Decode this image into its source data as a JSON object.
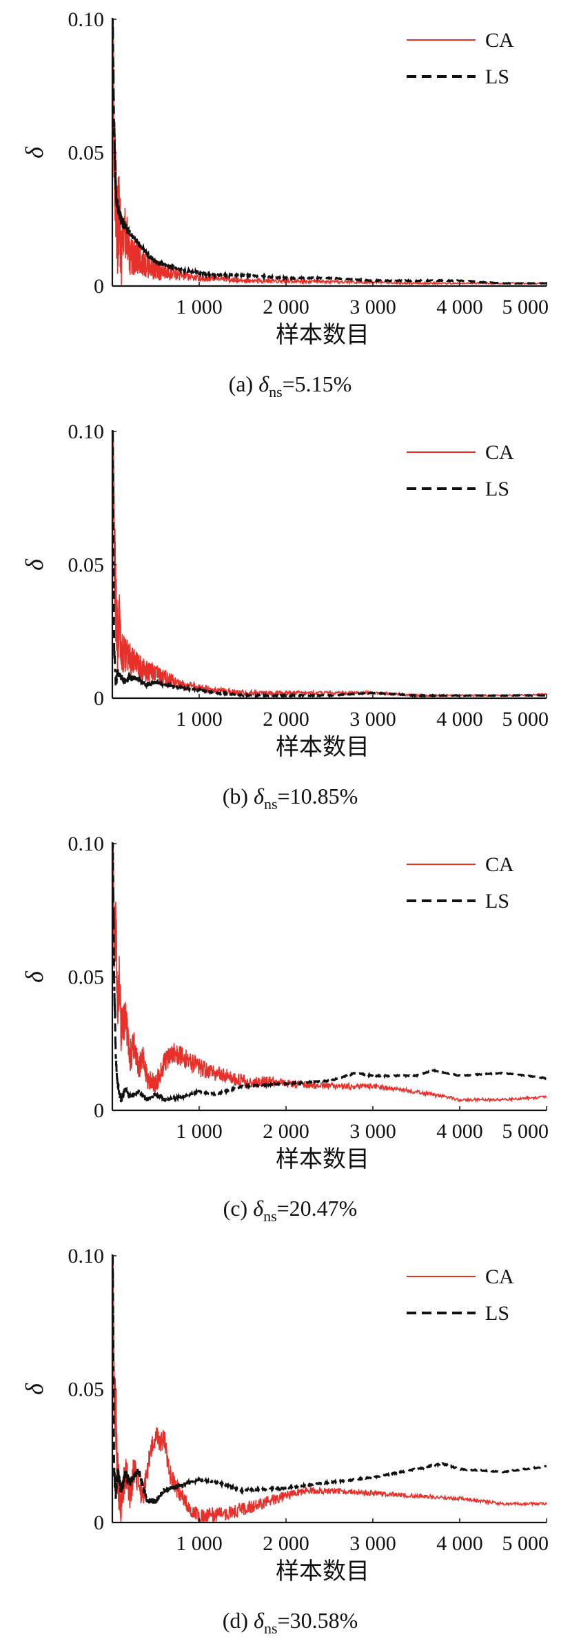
{
  "chart_data": [
    {
      "type": "line",
      "panel_label": "(a)",
      "caption_symbol": "δ",
      "caption_subscript": "ns",
      "caption_value": "=5.15%",
      "xlabel": "样本数目",
      "ylabel": "δ",
      "xlim": [
        0,
        5000
      ],
      "ylim": [
        0,
        0.1
      ],
      "x_ticks": [
        1000,
        2000,
        3000,
        4000,
        5000
      ],
      "x_tick_labels": [
        "1 000",
        "2 000",
        "3 000",
        "4 000",
        "5 000"
      ],
      "y_ticks": [
        0,
        0.05,
        0.1
      ],
      "y_tick_labels": [
        "0",
        "0.05",
        "0.10"
      ],
      "legend_position": "top-right",
      "grid": false,
      "series": [
        {
          "name": "CA",
          "color": "#e8302a",
          "style": "solid",
          "x": [
            5,
            20,
            40,
            60,
            80,
            100,
            150,
            200,
            300,
            400,
            500,
            600,
            800,
            1000,
            1200,
            1500,
            2000,
            2500,
            3000,
            3500,
            4000,
            4500,
            5000
          ],
          "y": [
            0.1,
            0.05,
            0.035,
            0.02,
            0.03,
            0.01,
            0.02,
            0.012,
            0.01,
            0.008,
            0.006,
            0.005,
            0.004,
            0.003,
            0.003,
            0.002,
            0.002,
            0.0015,
            0.0015,
            0.001,
            0.001,
            0.001,
            0.001
          ],
          "noise": [
            0.02,
            0.02,
            0.018,
            0.018,
            0.015,
            0.012,
            0.01,
            0.008,
            0.006,
            0.005,
            0.004,
            0.003,
            0.002,
            0.0015,
            0.0012,
            0.001,
            0.0008,
            0.0006,
            0.0005,
            0.0004,
            0.0003,
            0.0003,
            0.0003
          ]
        },
        {
          "name": "LS",
          "color": "#111111",
          "style": "dashed",
          "x": [
            5,
            20,
            40,
            60,
            100,
            150,
            200,
            300,
            400,
            500,
            600,
            800,
            1000,
            1200,
            1500,
            2000,
            2500,
            3000,
            3500,
            4000,
            4500,
            5000
          ],
          "y": [
            0.1,
            0.06,
            0.035,
            0.03,
            0.025,
            0.022,
            0.02,
            0.016,
            0.012,
            0.009,
            0.008,
            0.006,
            0.005,
            0.004,
            0.004,
            0.003,
            0.003,
            0.002,
            0.002,
            0.002,
            0.001,
            0.001
          ],
          "noise": [
            0.005,
            0.004,
            0.003,
            0.002,
            0.002,
            0.002,
            0.001,
            0.001,
            0.001,
            0.001,
            0.0008,
            0.0006,
            0.0005,
            0.0004,
            0.0003,
            0.0003,
            0.0002,
            0.0002,
            0.0002,
            0.0002,
            0.0001,
            0.0001
          ]
        }
      ]
    },
    {
      "type": "line",
      "panel_label": "(b)",
      "caption_symbol": "δ",
      "caption_subscript": "ns",
      "caption_value": "=10.85%",
      "xlabel": "样本数目",
      "ylabel": "δ",
      "xlim": [
        0,
        5000
      ],
      "ylim": [
        0,
        0.1
      ],
      "x_ticks": [
        1000,
        2000,
        3000,
        4000,
        5000
      ],
      "x_tick_labels": [
        "1 000",
        "2 000",
        "3 000",
        "4 000",
        "5 000"
      ],
      "y_ticks": [
        0,
        0.05,
        0.1
      ],
      "y_tick_labels": [
        "0",
        "0.05",
        "0.10"
      ],
      "legend_position": "top-right",
      "grid": false,
      "series": [
        {
          "name": "CA",
          "color": "#e8302a",
          "style": "solid",
          "x": [
            5,
            20,
            40,
            60,
            80,
            100,
            150,
            200,
            300,
            400,
            500,
            600,
            800,
            1000,
            1200,
            1500,
            2000,
            2500,
            3000,
            3500,
            4000,
            4500,
            5000
          ],
          "y": [
            0.1,
            0.06,
            0.035,
            0.02,
            0.03,
            0.018,
            0.016,
            0.015,
            0.012,
            0.01,
            0.009,
            0.008,
            0.005,
            0.004,
            0.003,
            0.002,
            0.002,
            0.002,
            0.002,
            0.001,
            0.001,
            0.001,
            0.0015
          ],
          "noise": [
            0.02,
            0.018,
            0.015,
            0.012,
            0.01,
            0.008,
            0.007,
            0.006,
            0.005,
            0.004,
            0.0035,
            0.003,
            0.002,
            0.0015,
            0.0012,
            0.001,
            0.0008,
            0.0006,
            0.0005,
            0.0004,
            0.0003,
            0.0003,
            0.0003
          ]
        },
        {
          "name": "LS",
          "color": "#111111",
          "style": "dashed",
          "x": [
            5,
            20,
            40,
            60,
            100,
            150,
            200,
            300,
            400,
            500,
            600,
            800,
            1000,
            1200,
            1500,
            2000,
            2500,
            3000,
            3500,
            4000,
            4500,
            5000
          ],
          "y": [
            0.1,
            0.02,
            0.005,
            0.01,
            0.008,
            0.006,
            0.008,
            0.007,
            0.005,
            0.006,
            0.005,
            0.004,
            0.003,
            0.002,
            0.001,
            0.001,
            0.001,
            0.002,
            0.001,
            0.001,
            0.001,
            0.001
          ],
          "noise": [
            0.004,
            0.003,
            0.002,
            0.0015,
            0.0012,
            0.001,
            0.001,
            0.0008,
            0.0008,
            0.0007,
            0.0006,
            0.0005,
            0.0004,
            0.0003,
            0.0003,
            0.0002,
            0.0002,
            0.0002,
            0.0002,
            0.0001,
            0.0001,
            0.0001
          ]
        }
      ]
    },
    {
      "type": "line",
      "panel_label": "(c)",
      "caption_symbol": "δ",
      "caption_subscript": "ns",
      "caption_value": "=20.47%",
      "xlabel": "样本数目",
      "ylabel": "δ",
      "xlim": [
        0,
        5000
      ],
      "ylim": [
        0,
        0.1
      ],
      "x_ticks": [
        1000,
        2000,
        3000,
        4000,
        5000
      ],
      "x_tick_labels": [
        "1 000",
        "2 000",
        "3 000",
        "4 000",
        "5 000"
      ],
      "y_ticks": [
        0,
        0.05,
        0.1
      ],
      "y_tick_labels": [
        "0",
        "0.05",
        "0.10"
      ],
      "legend_position": "top-right",
      "grid": false,
      "series": [
        {
          "name": "CA",
          "color": "#e8302a",
          "style": "solid",
          "x": [
            5,
            20,
            40,
            60,
            80,
            100,
            150,
            200,
            250,
            300,
            350,
            400,
            500,
            600,
            700,
            800,
            1000,
            1200,
            1400,
            1600,
            1800,
            2000,
            2500,
            3000,
            3500,
            4000,
            4500,
            5000
          ],
          "y": [
            0.1,
            0.06,
            0.07,
            0.04,
            0.05,
            0.03,
            0.035,
            0.02,
            0.025,
            0.015,
            0.02,
            0.012,
            0.01,
            0.018,
            0.022,
            0.02,
            0.016,
            0.014,
            0.012,
            0.01,
            0.011,
            0.01,
            0.009,
            0.009,
            0.007,
            0.004,
            0.004,
            0.005
          ],
          "noise": [
            0.015,
            0.012,
            0.012,
            0.01,
            0.01,
            0.008,
            0.007,
            0.006,
            0.006,
            0.005,
            0.005,
            0.004,
            0.004,
            0.004,
            0.004,
            0.004,
            0.0035,
            0.003,
            0.003,
            0.0025,
            0.002,
            0.0015,
            0.0012,
            0.001,
            0.0008,
            0.0006,
            0.0005,
            0.0005
          ]
        },
        {
          "name": "LS",
          "color": "#111111",
          "style": "dashed",
          "x": [
            5,
            20,
            40,
            60,
            100,
            150,
            200,
            300,
            400,
            500,
            600,
            800,
            1000,
            1200,
            1500,
            2000,
            2500,
            2800,
            3000,
            3500,
            3700,
            4000,
            4500,
            5000
          ],
          "y": [
            0.1,
            0.05,
            0.02,
            0.01,
            0.004,
            0.008,
            0.005,
            0.007,
            0.004,
            0.006,
            0.004,
            0.005,
            0.007,
            0.006,
            0.009,
            0.01,
            0.011,
            0.014,
            0.013,
            0.013,
            0.015,
            0.013,
            0.014,
            0.012
          ],
          "noise": [
            0.004,
            0.003,
            0.002,
            0.0015,
            0.0012,
            0.001,
            0.001,
            0.0008,
            0.0008,
            0.0007,
            0.0006,
            0.0005,
            0.0004,
            0.0003,
            0.0003,
            0.0003,
            0.0003,
            0.0003,
            0.0003,
            0.0002,
            0.0002,
            0.0002,
            0.0002,
            0.0002
          ]
        }
      ]
    },
    {
      "type": "line",
      "panel_label": "(d)",
      "caption_symbol": "δ",
      "caption_subscript": "ns",
      "caption_value": "=30.58%",
      "xlabel": "样本数目",
      "ylabel": "δ",
      "xlim": [
        0,
        5000
      ],
      "ylim": [
        0,
        0.1
      ],
      "x_ticks": [
        1000,
        2000,
        3000,
        4000,
        5000
      ],
      "x_tick_labels": [
        "1 000",
        "2 000",
        "3 000",
        "4 000",
        "5 000"
      ],
      "y_ticks": [
        0,
        0.05,
        0.1
      ],
      "y_tick_labels": [
        "0",
        "0.05",
        "0.10"
      ],
      "legend_position": "top-right",
      "grid": false,
      "series": [
        {
          "name": "CA",
          "color": "#e8302a",
          "style": "solid",
          "x": [
            5,
            20,
            40,
            60,
            80,
            100,
            150,
            200,
            250,
            300,
            350,
            400,
            450,
            500,
            550,
            600,
            650,
            700,
            800,
            900,
            1000,
            1200,
            1400,
            1600,
            1800,
            2000,
            2200,
            2500,
            3000,
            3500,
            4000,
            4500,
            5000
          ],
          "y": [
            0.1,
            0.05,
            0.04,
            0.02,
            0.01,
            0.005,
            0.02,
            0.01,
            0.02,
            0.015,
            0.01,
            0.02,
            0.028,
            0.033,
            0.03,
            0.032,
            0.02,
            0.015,
            0.01,
            0.005,
            0.002,
            0.003,
            0.004,
            0.006,
            0.008,
            0.01,
            0.012,
            0.012,
            0.011,
            0.01,
            0.009,
            0.007,
            0.007
          ],
          "noise": [
            0.015,
            0.012,
            0.012,
            0.01,
            0.008,
            0.006,
            0.007,
            0.006,
            0.006,
            0.005,
            0.005,
            0.005,
            0.004,
            0.004,
            0.004,
            0.004,
            0.004,
            0.004,
            0.003,
            0.003,
            0.003,
            0.003,
            0.0025,
            0.0025,
            0.002,
            0.002,
            0.0015,
            0.0012,
            0.001,
            0.0008,
            0.0007,
            0.0006,
            0.0005
          ]
        },
        {
          "name": "LS",
          "color": "#111111",
          "style": "dashed",
          "x": [
            5,
            20,
            40,
            60,
            100,
            150,
            200,
            300,
            400,
            500,
            600,
            800,
            1000,
            1200,
            1500,
            2000,
            2500,
            3000,
            3500,
            3800,
            4000,
            4500,
            5000
          ],
          "y": [
            0.1,
            0.02,
            0.01,
            0.02,
            0.012,
            0.018,
            0.015,
            0.02,
            0.008,
            0.008,
            0.012,
            0.014,
            0.016,
            0.015,
            0.012,
            0.013,
            0.015,
            0.017,
            0.02,
            0.022,
            0.02,
            0.019,
            0.021
          ],
          "noise": [
            0.004,
            0.003,
            0.003,
            0.003,
            0.002,
            0.002,
            0.002,
            0.0015,
            0.0012,
            0.001,
            0.001,
            0.0008,
            0.0006,
            0.0005,
            0.0004,
            0.0004,
            0.0003,
            0.0003,
            0.0003,
            0.0003,
            0.0002,
            0.0002,
            0.0002
          ]
        }
      ]
    }
  ]
}
